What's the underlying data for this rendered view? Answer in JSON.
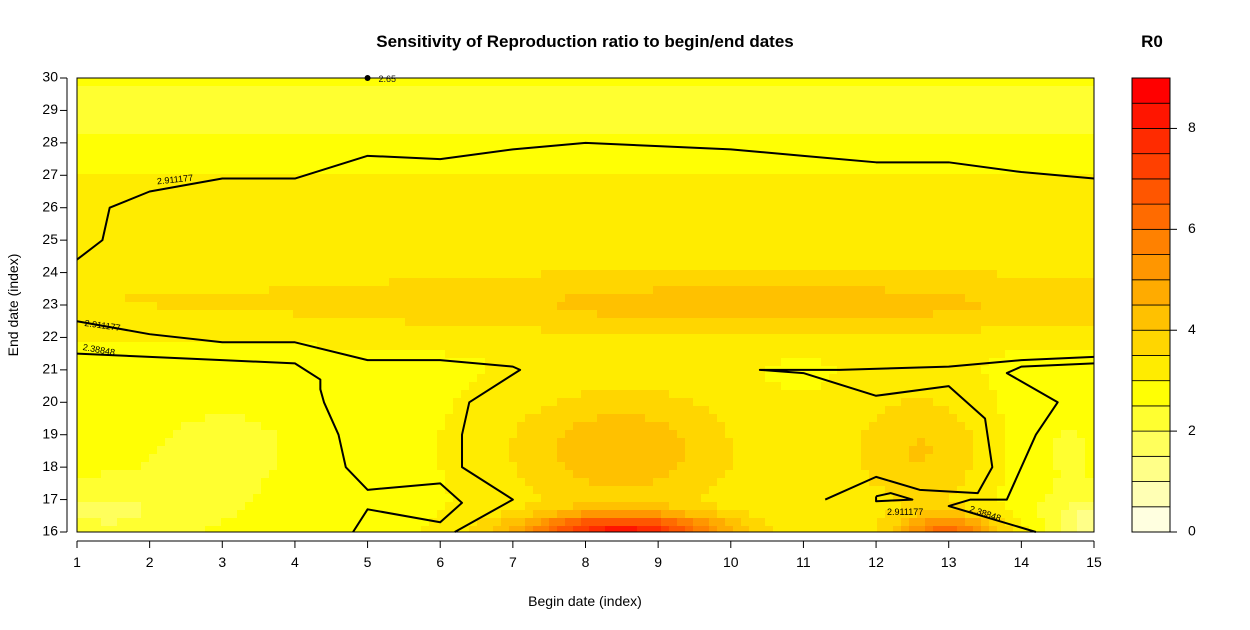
{
  "chart_data": {
    "type": "heatmap",
    "subtype": "filled-contour",
    "title": "Sensitivity of Reproduction ratio to begin/end dates",
    "xlabel": "Begin date (index)",
    "ylabel": "End date (index)",
    "xlim": [
      1,
      15
    ],
    "ylim": [
      16,
      30
    ],
    "x_ticks": [
      "1",
      "2",
      "3",
      "4",
      "5",
      "6",
      "7",
      "8",
      "9",
      "10",
      "11",
      "12",
      "13",
      "14",
      "15"
    ],
    "y_ticks": [
      "16",
      "17",
      "18",
      "19",
      "20",
      "21",
      "22",
      "23",
      "24",
      "25",
      "26",
      "27",
      "28",
      "29",
      "30"
    ],
    "colorbar": {
      "title": "R0",
      "min": 0,
      "max": 9,
      "ticks": [
        "0",
        "2",
        "4",
        "6",
        "8"
      ],
      "n_levels": 18,
      "low_color": "#FFFFE0",
      "mid_color": "#FFFF00",
      "high_color": "#FF0000"
    },
    "contour_labels": [
      "2.65",
      "2.911177",
      "2.38848"
    ],
    "z_description": "R0 estimate per (begin index, end index) pair",
    "grid": false
  }
}
